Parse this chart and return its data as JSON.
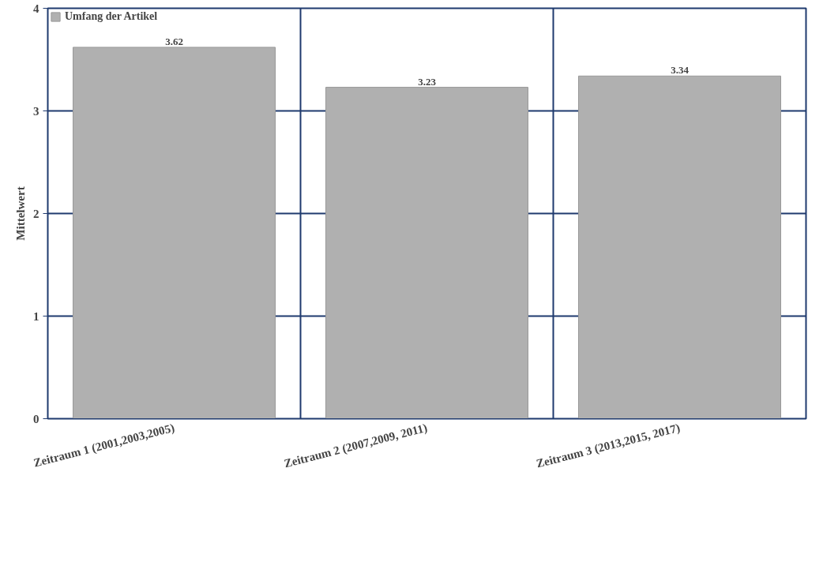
{
  "chart_data": {
    "type": "bar",
    "ylabel": "Mittelwert",
    "categories": [
      "Zeitraum 1 (2001,2003,2005)",
      "Zeitraum 2 (2007,2009, 2011)",
      "Zeitraum 3 (2013,2015, 2017)"
    ],
    "series": [
      {
        "name": "Umfang der Artikel",
        "color": "#b0b0b0",
        "values": [
          3.62,
          3.23,
          3.34
        ]
      }
    ],
    "ylim": [
      0,
      4
    ],
    "yticks": [
      0,
      1,
      2,
      3,
      4
    ],
    "grid": true,
    "legend": "top left",
    "data_labels": true
  }
}
